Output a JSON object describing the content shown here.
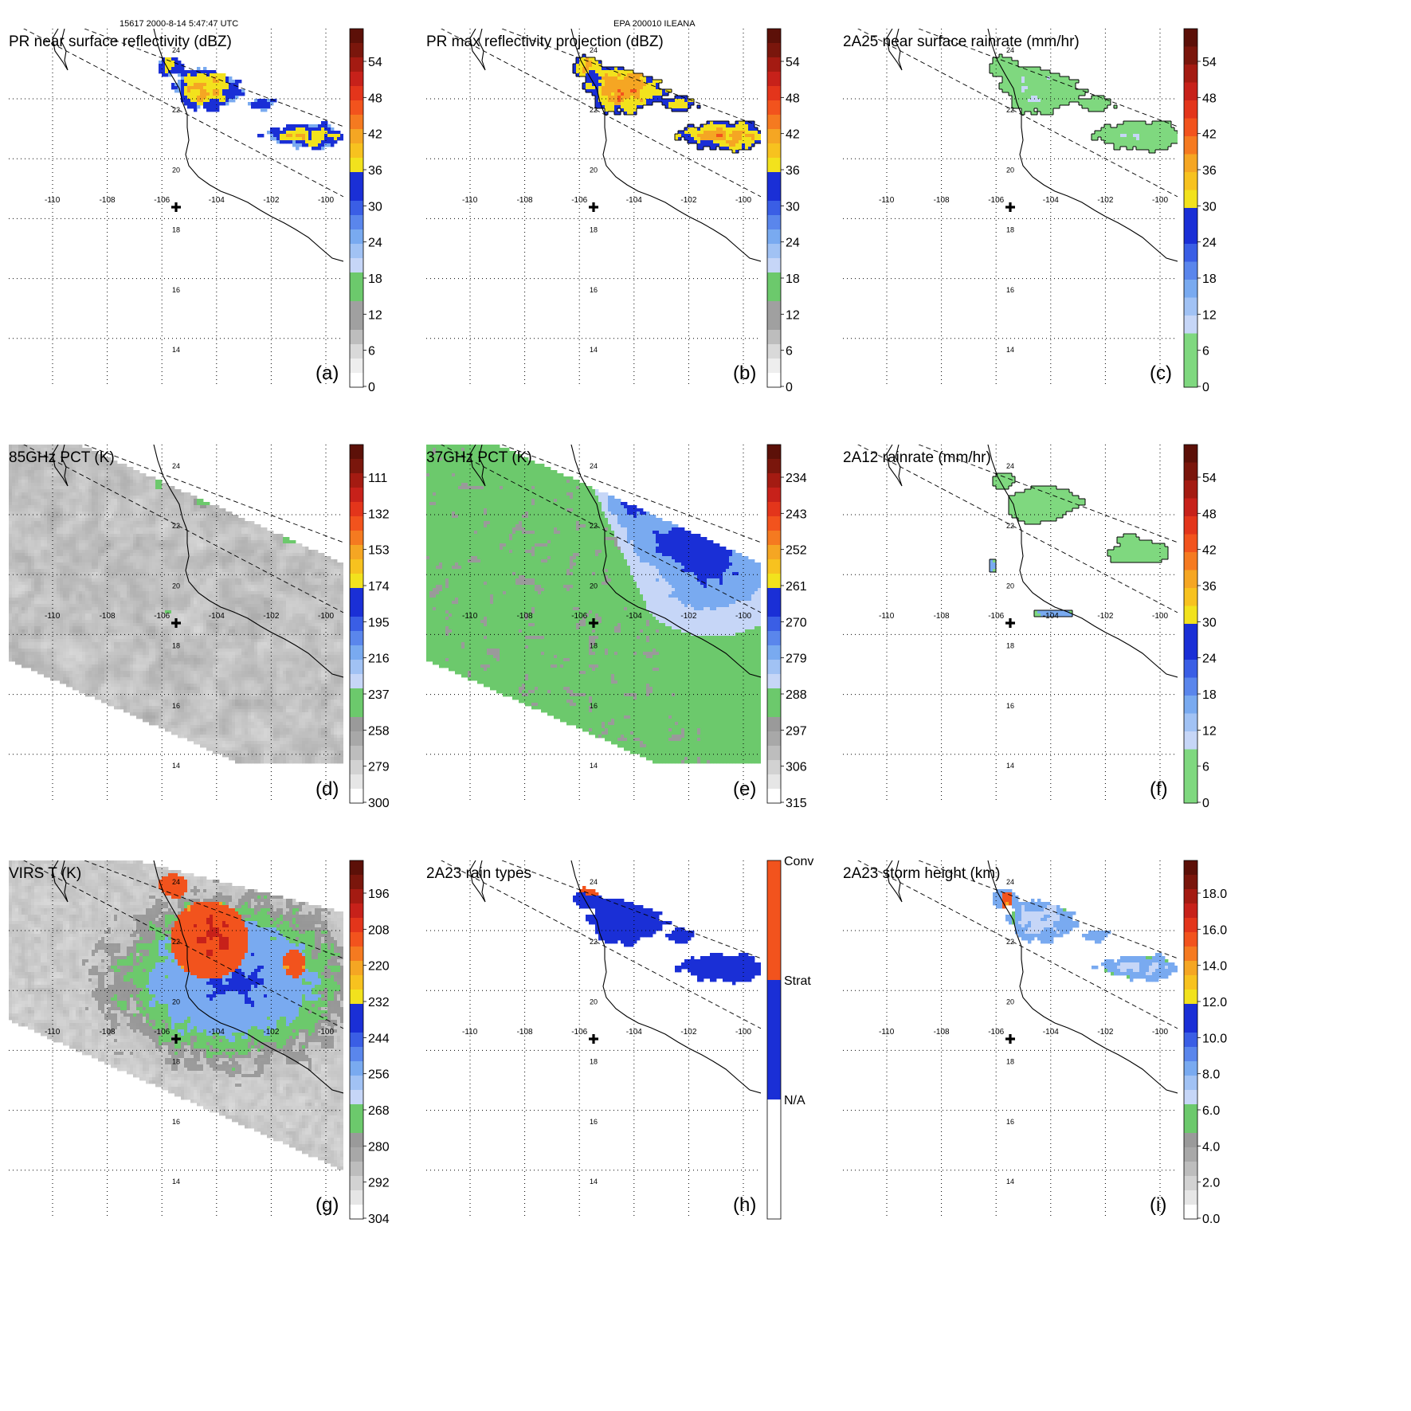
{
  "header": {
    "orbit_time": "15617 2000-8-14 5:47:47 UTC",
    "storm": "EPA 200010 ILEANA"
  },
  "map": {
    "lon_ticks": [
      "-110",
      "-108",
      "-106",
      "-104",
      "-102",
      "-100"
    ],
    "lat_ticks": [
      "24",
      "22",
      "20",
      "18",
      "16",
      "14"
    ],
    "marker_label": "storm center cross"
  },
  "chart_data": [
    {
      "type": "heatmap",
      "panel": "(a)",
      "title": "PR near surface reflectivity (dBZ)",
      "colorbar_ticks": [
        "54",
        "48",
        "42",
        "36",
        "30",
        "24",
        "18",
        "12",
        "6",
        "0"
      ],
      "field": "pr",
      "colors": [
        "#ffffff",
        "#d9d9d9",
        "#a0a0a0",
        "#6cc96c",
        "#c6d6f7",
        "#79aaf0",
        "#1a2fd6",
        "#f2e21d",
        "#f5a623",
        "#f2531d",
        "#c7211a",
        "#5c1008"
      ]
    },
    {
      "type": "heatmap",
      "panel": "(b)",
      "title": "PR max reflectivity projection (dBZ)",
      "colorbar_ticks": [
        "54",
        "48",
        "42",
        "36",
        "30",
        "24",
        "18",
        "12",
        "6",
        "0"
      ],
      "field": "prmax",
      "colors": [
        "#ffffff",
        "#d9d9d9",
        "#a0a0a0",
        "#6cc96c",
        "#c6d6f7",
        "#79aaf0",
        "#1a2fd6",
        "#f2e21d",
        "#f5a623",
        "#f2531d",
        "#c7211a",
        "#5c1008"
      ]
    },
    {
      "type": "heatmap",
      "panel": "(c)",
      "title": "2A25 near surface rainrate (mm/hr)",
      "colorbar_ticks": [
        "54",
        "48",
        "42",
        "36",
        "30",
        "24",
        "18",
        "12",
        "6",
        "0"
      ],
      "field": "rain25",
      "colors": [
        "#7fd87f",
        "#c6d6f7",
        "#79aaf0",
        "#1a2fd6",
        "#f2e21d",
        "#f5a623",
        "#f2531d",
        "#c7211a",
        "#5c1008"
      ]
    },
    {
      "type": "heatmap",
      "panel": "(d)",
      "title": "85GHz PCT (K)",
      "colorbar_ticks": [
        "111",
        "132",
        "153",
        "174",
        "195",
        "216",
        "237",
        "258",
        "279",
        "300"
      ],
      "field": "pct85",
      "colors": [
        "#ffffff",
        "#d9d9d9",
        "#a0a0a0",
        "#6cc96c",
        "#c6d6f7",
        "#79aaf0",
        "#1a2fd6",
        "#f2e21d",
        "#f5a623",
        "#f2531d",
        "#c7211a",
        "#5c1008"
      ]
    },
    {
      "type": "heatmap",
      "panel": "(e)",
      "title": "37GHz PCT (K)",
      "colorbar_ticks": [
        "234",
        "243",
        "252",
        "261",
        "270",
        "279",
        "288",
        "297",
        "306",
        "315"
      ],
      "field": "pct37",
      "colors": [
        "#ffffff",
        "#d9d9d9",
        "#a0a0a0",
        "#6cc96c",
        "#c6d6f7",
        "#79aaf0",
        "#1a2fd6",
        "#f2e21d",
        "#f5a623",
        "#f2531d",
        "#c7211a",
        "#5c1008"
      ]
    },
    {
      "type": "heatmap",
      "panel": "(f)",
      "title": "2A12 rainrate (mm/hr)",
      "colorbar_ticks": [
        "54",
        "48",
        "42",
        "36",
        "30",
        "24",
        "18",
        "12",
        "6",
        "0"
      ],
      "field": "rain12",
      "colors": [
        "#7fd87f",
        "#c6d6f7",
        "#79aaf0",
        "#1a2fd6",
        "#f2e21d",
        "#f5a623",
        "#f2531d",
        "#c7211a",
        "#5c1008"
      ]
    },
    {
      "type": "heatmap",
      "panel": "(g)",
      "title": "VIRS T    (K)",
      "colorbar_ticks": [
        "196",
        "208",
        "220",
        "232",
        "244",
        "256",
        "268",
        "280",
        "292",
        "304"
      ],
      "field": "virs",
      "colors": [
        "#ffffff",
        "#d9d9d9",
        "#a0a0a0",
        "#6cc96c",
        "#c6d6f7",
        "#79aaf0",
        "#1a2fd6",
        "#f2e21d",
        "#f5a623",
        "#f2531d",
        "#c7211a",
        "#5c1008"
      ]
    },
    {
      "type": "heatmap",
      "panel": "(h)",
      "title": "2A23 rain types",
      "colorbar_ticks": [
        "Conv",
        "Strat",
        "N/A"
      ],
      "field": "raintype",
      "colors": [
        "#ffffff",
        "#1a2fd6",
        "#f2531d"
      ]
    },
    {
      "type": "heatmap",
      "panel": "(i)",
      "title": "2A23 storm height (km)",
      "colorbar_ticks": [
        "18.0",
        "16.0",
        "14.0",
        "12.0",
        "10.0",
        "8.0",
        "6.0",
        "4.0",
        "2.0",
        "0.0"
      ],
      "field": "height",
      "colors": [
        "#ffffff",
        "#d9d9d9",
        "#a0a0a0",
        "#6cc96c",
        "#c6d6f7",
        "#79aaf0",
        "#1a2fd6",
        "#f2e21d",
        "#f5a623",
        "#f2531d",
        "#c7211a",
        "#5c1008"
      ]
    }
  ]
}
